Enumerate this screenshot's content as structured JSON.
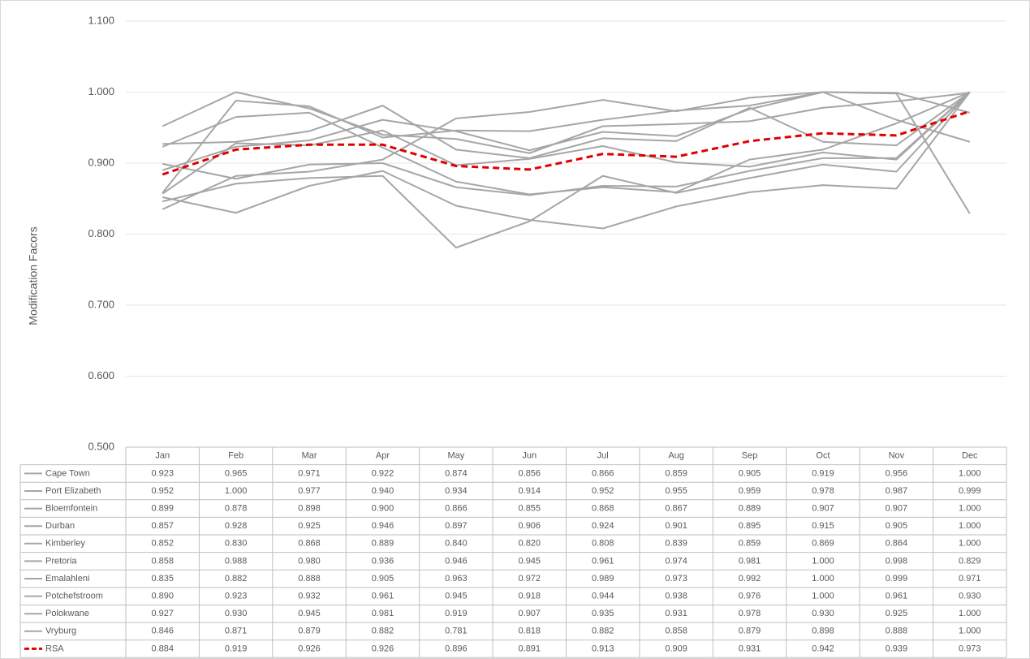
{
  "chart_data": {
    "type": "line",
    "y_label": "Modification Facors",
    "categories": [
      "Jan",
      "Feb",
      "Mar",
      "Apr",
      "May",
      "Jun",
      "Jul",
      "Aug",
      "Sep",
      "Oct",
      "Nov",
      "Dec"
    ],
    "ylim": [
      0.5,
      1.1
    ],
    "yticks": [
      {
        "value": 0.5,
        "label": "0.500"
      },
      {
        "value": 0.6,
        "label": "0.600"
      },
      {
        "value": 0.7,
        "label": "0.700"
      },
      {
        "value": 0.8,
        "label": "0.800"
      },
      {
        "value": 0.9,
        "label": "0.900"
      },
      {
        "value": 1.0,
        "label": "1.000"
      },
      {
        "value": 1.1,
        "label": "1.100"
      }
    ],
    "grid": true,
    "data_table": true,
    "series": [
      {
        "name": "Cape Town",
        "color": "#a6a6a6",
        "dashed": false,
        "values": [
          0.923,
          0.965,
          0.971,
          0.922,
          0.874,
          0.856,
          0.866,
          0.859,
          0.905,
          0.919,
          0.956,
          1
        ],
        "value_labels": [
          "0.923",
          "0.965",
          "0.971",
          "0.922",
          "0.874",
          "0.856",
          "0.866",
          "0.859",
          "0.905",
          "0.919",
          "0.956",
          "1.000"
        ]
      },
      {
        "name": "Port Elizabeth",
        "color": "#a6a6a6",
        "dashed": false,
        "values": [
          0.952,
          1,
          0.977,
          0.94,
          0.934,
          0.914,
          0.952,
          0.955,
          0.959,
          0.978,
          0.987,
          0.999
        ],
        "value_labels": [
          "0.952",
          "1.000",
          "0.977",
          "0.940",
          "0.934",
          "0.914",
          "0.952",
          "0.955",
          "0.959",
          "0.978",
          "0.987",
          "0.999"
        ]
      },
      {
        "name": "Bloemfontein",
        "color": "#a6a6a6",
        "dashed": false,
        "values": [
          0.899,
          0.878,
          0.898,
          0.9,
          0.866,
          0.855,
          0.868,
          0.867,
          0.889,
          0.907,
          0.907,
          1
        ],
        "value_labels": [
          "0.899",
          "0.878",
          "0.898",
          "0.900",
          "0.866",
          "0.855",
          "0.868",
          "0.867",
          "0.889",
          "0.907",
          "0.907",
          "1.000"
        ]
      },
      {
        "name": "Durban",
        "color": "#a6a6a6",
        "dashed": false,
        "values": [
          0.857,
          0.928,
          0.925,
          0.946,
          0.897,
          0.906,
          0.924,
          0.901,
          0.895,
          0.915,
          0.905,
          1
        ],
        "value_labels": [
          "0.857",
          "0.928",
          "0.925",
          "0.946",
          "0.897",
          "0.906",
          "0.924",
          "0.901",
          "0.895",
          "0.915",
          "0.905",
          "1.000"
        ]
      },
      {
        "name": "Kimberley",
        "color": "#a6a6a6",
        "dashed": false,
        "values": [
          0.852,
          0.83,
          0.868,
          0.889,
          0.84,
          0.82,
          0.808,
          0.839,
          0.859,
          0.869,
          0.864,
          1
        ],
        "value_labels": [
          "0.852",
          "0.830",
          "0.868",
          "0.889",
          "0.840",
          "0.820",
          "0.808",
          "0.839",
          "0.859",
          "0.869",
          "0.864",
          "1.000"
        ]
      },
      {
        "name": "Pretoria",
        "color": "#a6a6a6",
        "dashed": false,
        "values": [
          0.858,
          0.988,
          0.98,
          0.936,
          0.946,
          0.945,
          0.961,
          0.974,
          0.981,
          1,
          0.998,
          0.829
        ],
        "value_labels": [
          "0.858",
          "0.988",
          "0.980",
          "0.936",
          "0.946",
          "0.945",
          "0.961",
          "0.974",
          "0.981",
          "1.000",
          "0.998",
          "0.829"
        ]
      },
      {
        "name": "Emalahleni",
        "color": "#a6a6a6",
        "dashed": false,
        "values": [
          0.835,
          0.882,
          0.888,
          0.905,
          0.963,
          0.972,
          0.989,
          0.973,
          0.992,
          1,
          0.999,
          0.971
        ],
        "value_labels": [
          "0.835",
          "0.882",
          "0.888",
          "0.905",
          "0.963",
          "0.972",
          "0.989",
          "0.973",
          "0.992",
          "1.000",
          "0.999",
          "0.971"
        ]
      },
      {
        "name": "Potchefstroom",
        "color": "#a6a6a6",
        "dashed": false,
        "values": [
          0.89,
          0.923,
          0.932,
          0.961,
          0.945,
          0.918,
          0.944,
          0.938,
          0.976,
          1,
          0.961,
          0.93
        ],
        "value_labels": [
          "0.890",
          "0.923",
          "0.932",
          "0.961",
          "0.945",
          "0.918",
          "0.944",
          "0.938",
          "0.976",
          "1.000",
          "0.961",
          "0.930"
        ]
      },
      {
        "name": "Polokwane",
        "color": "#a6a6a6",
        "dashed": false,
        "values": [
          0.927,
          0.93,
          0.945,
          0.981,
          0.919,
          0.907,
          0.935,
          0.931,
          0.978,
          0.93,
          0.925,
          1
        ],
        "value_labels": [
          "0.927",
          "0.930",
          "0.945",
          "0.981",
          "0.919",
          "0.907",
          "0.935",
          "0.931",
          "0.978",
          "0.930",
          "0.925",
          "1.000"
        ]
      },
      {
        "name": "Vryburg",
        "color": "#a6a6a6",
        "dashed": false,
        "values": [
          0.846,
          0.871,
          0.879,
          0.882,
          0.781,
          0.818,
          0.882,
          0.858,
          0.879,
          0.898,
          0.888,
          1
        ],
        "value_labels": [
          "0.846",
          "0.871",
          "0.879",
          "0.882",
          "0.781",
          "0.818",
          "0.882",
          "0.858",
          "0.879",
          "0.898",
          "0.888",
          "1.000"
        ]
      },
      {
        "name": "RSA",
        "color": "#e00000",
        "dashed": true,
        "values": [
          0.884,
          0.919,
          0.926,
          0.926,
          0.896,
          0.891,
          0.913,
          0.909,
          0.931,
          0.942,
          0.939,
          0.973
        ],
        "value_labels": [
          "0.884",
          "0.919",
          "0.926",
          "0.926",
          "0.896",
          "0.891",
          "0.913",
          "0.909",
          "0.931",
          "0.942",
          "0.939",
          "0.973"
        ]
      }
    ]
  }
}
